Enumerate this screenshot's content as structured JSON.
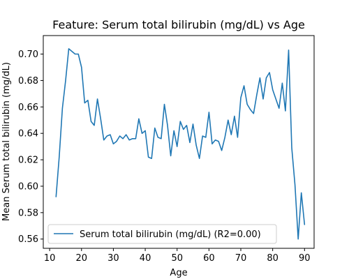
{
  "chart_data": {
    "type": "line",
    "title": "Feature: Serum total bilirubin (mg/dL) vs Age",
    "xlabel": "Age",
    "ylabel": "Mean Serum total bilirubin (mg/dL)",
    "xlim": [
      8,
      93
    ],
    "ylim": [
      0.553,
      0.714
    ],
    "xticks": [
      10,
      20,
      30,
      40,
      50,
      60,
      70,
      80,
      90
    ],
    "yticks": [
      0.56,
      0.58,
      0.6,
      0.62,
      0.64,
      0.66,
      0.68,
      0.7
    ],
    "ytick_labels": [
      "0.56",
      "0.58",
      "0.60",
      "0.62",
      "0.64",
      "0.66",
      "0.68",
      "0.70"
    ],
    "grid": false,
    "legend_position": "lower-left",
    "series": [
      {
        "name": "Serum total bilirubin (mg/dL) (R2=0.00)",
        "color": "#1f77b4",
        "x": [
          12,
          13,
          14,
          15,
          16,
          17,
          18,
          19,
          20,
          21,
          22,
          23,
          24,
          25,
          26,
          27,
          28,
          29,
          30,
          31,
          32,
          33,
          34,
          35,
          36,
          37,
          38,
          39,
          40,
          41,
          42,
          43,
          44,
          45,
          46,
          47,
          48,
          49,
          50,
          51,
          52,
          53,
          54,
          55,
          56,
          57,
          58,
          59,
          60,
          61,
          62,
          63,
          64,
          65,
          66,
          67,
          68,
          69,
          70,
          71,
          72,
          73,
          74,
          75,
          76,
          77,
          78,
          79,
          80,
          81,
          82,
          83,
          84,
          85,
          86,
          87,
          88,
          89,
          90
        ],
        "y": [
          0.592,
          0.622,
          0.659,
          0.68,
          0.704,
          0.702,
          0.7,
          0.7,
          0.69,
          0.663,
          0.665,
          0.649,
          0.646,
          0.666,
          0.651,
          0.635,
          0.638,
          0.639,
          0.632,
          0.634,
          0.638,
          0.636,
          0.639,
          0.635,
          0.636,
          0.636,
          0.651,
          0.64,
          0.642,
          0.622,
          0.621,
          0.644,
          0.637,
          0.636,
          0.662,
          0.646,
          0.623,
          0.642,
          0.63,
          0.649,
          0.643,
          0.646,
          0.633,
          0.647,
          0.631,
          0.621,
          0.638,
          0.637,
          0.656,
          0.632,
          0.635,
          0.634,
          0.627,
          0.637,
          0.65,
          0.639,
          0.653,
          0.637,
          0.667,
          0.676,
          0.662,
          0.658,
          0.655,
          0.669,
          0.682,
          0.666,
          0.682,
          0.686,
          0.673,
          0.666,
          0.659,
          0.678,
          0.657,
          0.703,
          0.629,
          0.601,
          0.56,
          0.595,
          0.571
        ]
      }
    ]
  }
}
